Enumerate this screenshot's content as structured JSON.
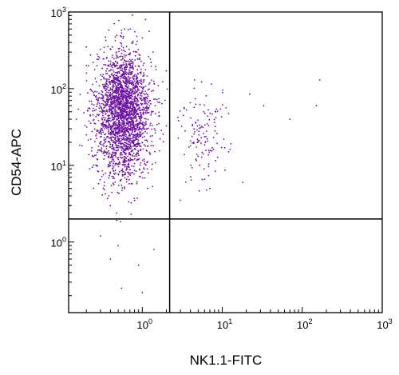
{
  "chart_data": {
    "type": "scatter",
    "title": "",
    "xlabel": "NK1.1-FITC",
    "ylabel": "CD54-APC",
    "x_scale": "log",
    "y_scale": "log",
    "xlim": [
      0.12,
      1000
    ],
    "ylim": [
      0.12,
      1000
    ],
    "grid": false,
    "legend": "none",
    "point_color": "#6a0fa0",
    "x_ticks": [
      {
        "base": "10",
        "exp": "0",
        "value": 1
      },
      {
        "base": "10",
        "exp": "1",
        "value": 10
      },
      {
        "base": "10",
        "exp": "2",
        "value": 100
      },
      {
        "base": "10",
        "exp": "3",
        "value": 1000
      }
    ],
    "y_ticks": [
      {
        "base": "10",
        "exp": "0",
        "value": 1
      },
      {
        "base": "10",
        "exp": "1",
        "value": 10
      },
      {
        "base": "10",
        "exp": "2",
        "value": 100
      },
      {
        "base": "10",
        "exp": "3",
        "value": 1000
      }
    ],
    "quadrant_gates": {
      "x": 2.2,
      "y": 2
    },
    "populations": [
      {
        "n": 2600,
        "x_center": 0.58,
        "y_center": 50,
        "x_spread_decades": 0.17,
        "y_spread_decades": 0.38
      },
      {
        "n": 130,
        "x_center": 5.5,
        "y_center": 28,
        "x_spread_decades": 0.14,
        "y_spread_decades": 0.3
      }
    ],
    "sparse_points": [
      {
        "x": 2.2,
        "y": 1.4
      },
      {
        "x": 12,
        "y": 15
      },
      {
        "x": 18,
        "y": 6
      },
      {
        "x": 22,
        "y": 85
      },
      {
        "x": 33,
        "y": 60
      },
      {
        "x": 70,
        "y": 40
      },
      {
        "x": 150,
        "y": 60
      },
      {
        "x": 165,
        "y": 130
      },
      {
        "x": 0.55,
        "y": 0.25
      },
      {
        "x": 1.0,
        "y": 0.22
      },
      {
        "x": 0.4,
        "y": 0.6
      },
      {
        "x": 0.9,
        "y": 0.5
      },
      {
        "x": 0.3,
        "y": 1.2
      },
      {
        "x": 0.5,
        "y": 0.9
      },
      {
        "x": 1.4,
        "y": 0.8
      },
      {
        "x": 0.2,
        "y": 25
      },
      {
        "x": 0.15,
        "y": 40
      },
      {
        "x": 0.2,
        "y": 350
      },
      {
        "x": 1.1,
        "y": 800
      },
      {
        "x": 0.6,
        "y": 600
      },
      {
        "x": 4.5,
        "y": 130
      },
      {
        "x": 3.0,
        "y": 3.5
      },
      {
        "x": 7.0,
        "y": 5.0
      },
      {
        "x": 4.0,
        "y": 18
      }
    ]
  }
}
